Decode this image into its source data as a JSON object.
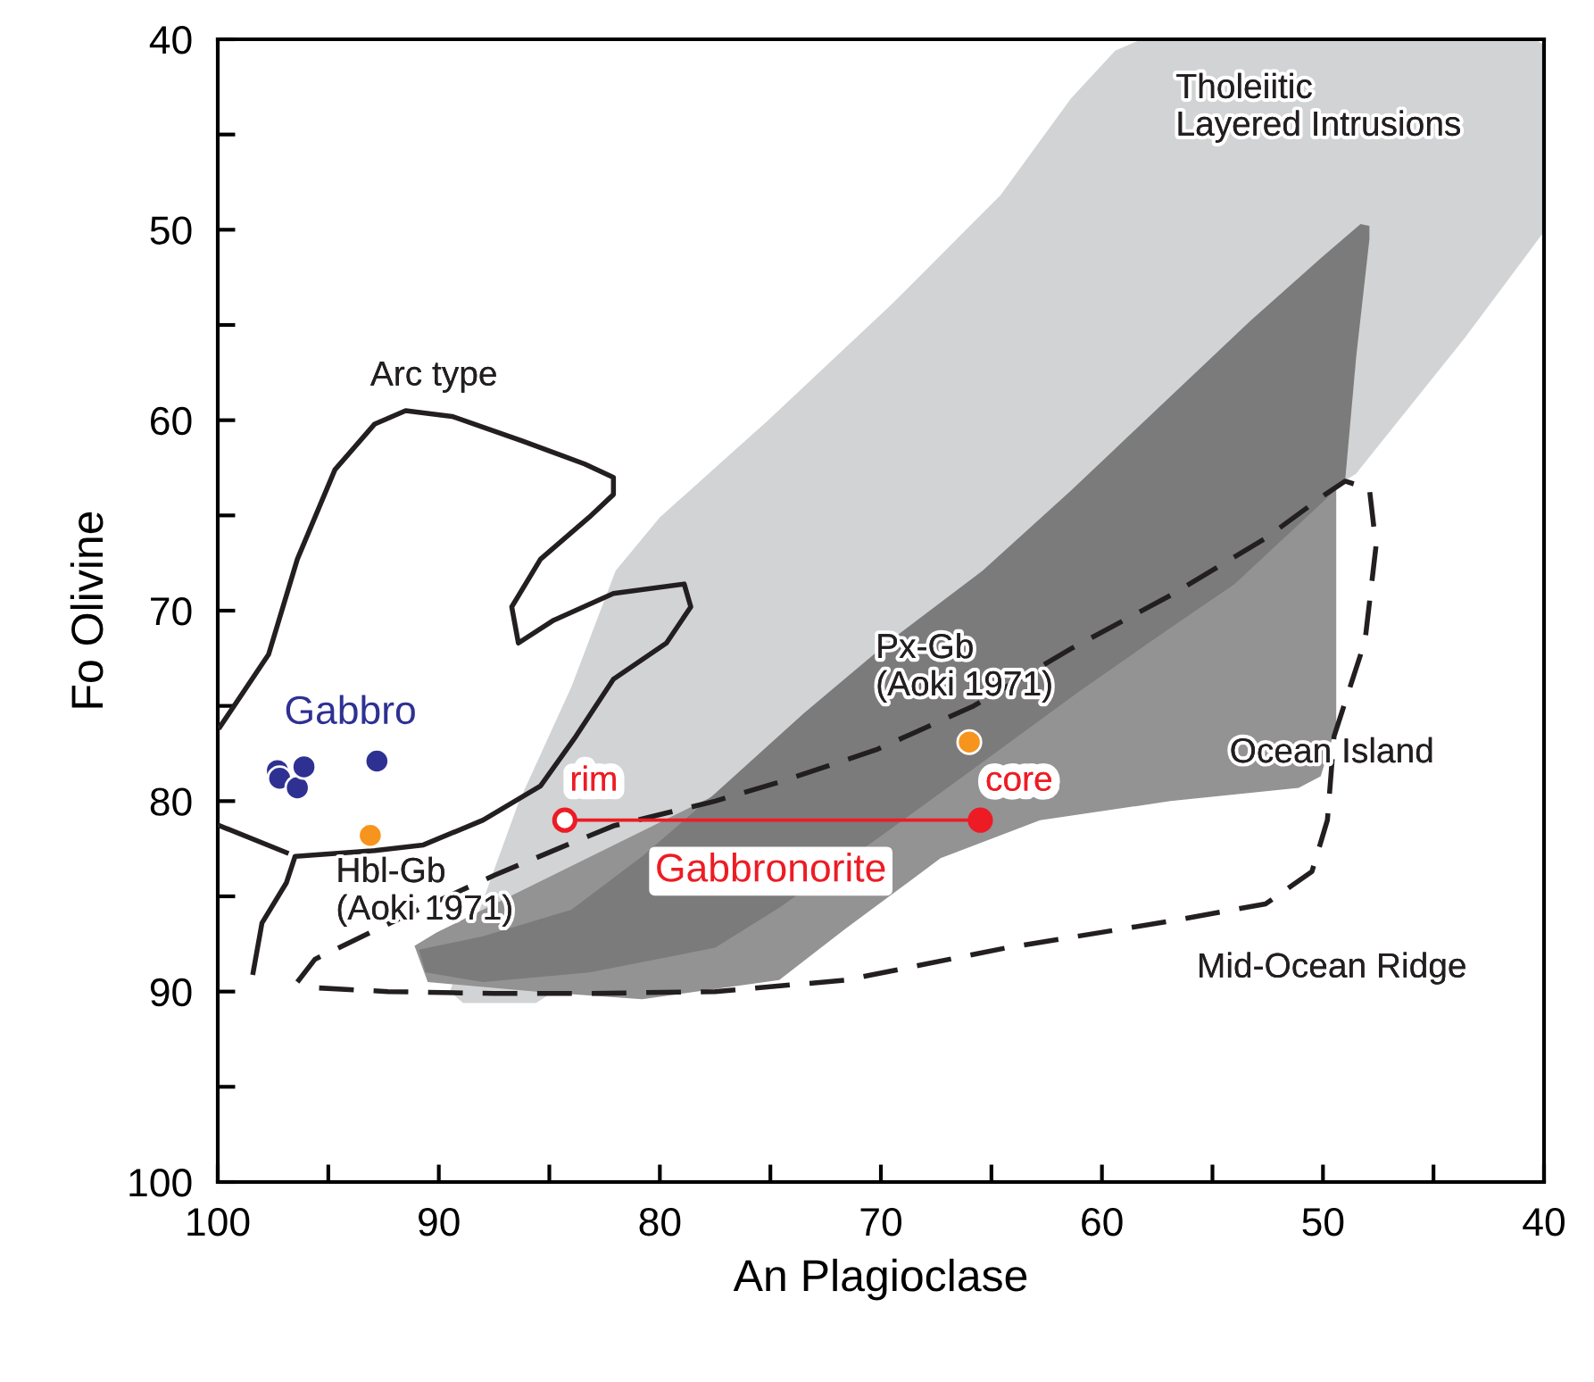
{
  "chart_data": {
    "type": "scatter",
    "xlabel": "An Plagioclase",
    "ylabel": "Fo Olivine",
    "xlim": [
      100,
      40
    ],
    "ylim": [
      100,
      40
    ],
    "xticks": [
      100,
      {
        "value": 95,
        "label": null
      },
      90,
      {
        "value": 85,
        "label": null
      },
      80,
      {
        "value": 75,
        "label": null
      },
      70,
      {
        "value": 65,
        "label": null
      },
      60,
      {
        "value": 55,
        "label": null
      },
      50,
      {
        "value": 45,
        "label": null
      },
      40
    ],
    "yticks": [
      40,
      {
        "value": 45,
        "label": null
      },
      50,
      {
        "value": 55,
        "label": null
      },
      60,
      {
        "value": 65,
        "label": null
      },
      70,
      {
        "value": 75,
        "label": null
      },
      80,
      {
        "value": 85,
        "label": null
      },
      90,
      {
        "value": 95,
        "label": null
      },
      100
    ],
    "series": [
      {
        "type": "area",
        "color": "#d1d3d4",
        "x": [
          89.5,
          86.4,
          84.0,
          82.0,
          80.0,
          75.1,
          69.5,
          64.6,
          61.4,
          59.4,
          58.2,
          40.4,
          40.0,
          40.0,
          43.6,
          48.5,
          85.6,
          88.9
        ],
        "values": [
          90.0,
          80.1,
          74.0,
          67.9,
          65.1,
          60.0,
          53.9,
          48.2,
          43.1,
          40.6,
          40,
          40,
          40.3,
          50.1,
          55.7,
          62.8,
          90.6,
          90.6
        ]
      },
      {
        "type": "area",
        "color": "#939393",
        "x": [
          91.1,
          90.1,
          49.4,
          49.4,
          50.1,
          51.1,
          56.9,
          62.8,
          67.3,
          71.6,
          74.6,
          80.8,
          85.6,
          90.5
        ],
        "values": [
          87.6,
          86.9,
          63.6,
          76.0,
          78.7,
          79.3,
          80.0,
          81.0,
          83.0,
          86.7,
          89.4,
          90.4,
          90.0,
          89.5
        ]
      },
      {
        "type": "area",
        "color": "#7b7b7b",
        "x": [
          47.9,
          48.3,
          50.1,
          53.3,
          57.4,
          61.4,
          65.4,
          69.5,
          73.5,
          77.5,
          80.8,
          84.0,
          88.0,
          90.9,
          90.6,
          88.0,
          83.2,
          77.5,
          74.6,
          70.2,
          65.8,
          61.1,
          56.9,
          54.0,
          49.0,
          48.5,
          47.9
        ],
        "values": [
          49.8,
          49.7,
          51.5,
          54.8,
          59.3,
          63.7,
          67.9,
          71.5,
          75.4,
          79.6,
          82.9,
          85.7,
          87.1,
          87.8,
          89.0,
          89.5,
          89.0,
          87.7,
          85.6,
          82.0,
          78.3,
          74.3,
          70.9,
          68.6,
          63.2,
          56.7,
          50.5
        ]
      },
      {
        "type": "line",
        "color": "#231f20",
        "line_style": "solid",
        "marker": "none",
        "x": [
          98.4,
          98.0,
          96.9,
          96.5,
          92.9,
          90.7,
          88.0,
          85.4,
          83.8,
          82.1,
          79.7,
          78.6,
          78.9,
          82.1,
          84.8,
          86.4,
          86.7,
          85.4,
          83.2,
          82.1,
          82.1,
          83.4,
          86.2,
          89.4,
          91.5,
          92.9,
          94.7,
          96.4,
          97.7,
          99.9,
          null,
          99.9,
          96.9
        ],
        "values": [
          89.0,
          86.4,
          84.3,
          82.9,
          82.6,
          82.3,
          81.0,
          79.2,
          76.6,
          73.6,
          71.7,
          69.8,
          68.6,
          69.1,
          70.5,
          71.7,
          69.8,
          67.3,
          65.1,
          63.9,
          63.0,
          62.3,
          61.1,
          59.8,
          59.5,
          60.2,
          62.6,
          67.3,
          72.3,
          76.1,
          null,
          81.3,
          82.7
        ]
      },
      {
        "type": "line",
        "color": "#231f20",
        "line_style": "dashed",
        "marker": "none",
        "x": [
          96.4,
          95.6,
          91.3,
          87.5,
          84.2,
          82.1,
          77.5,
          74.6,
          70.2,
          65.8,
          61.4,
          56.9,
          52.6,
          49.9,
          49.0,
          47.9,
          47.6,
          48.1,
          49.5,
          49.8,
          50.5,
          52.6,
          56.9,
          64.3,
          71.6,
          77.5,
          83.2,
          87.5,
          92.3,
          95.6
        ],
        "values": [
          89.5,
          88.3,
          85.9,
          83.9,
          82.3,
          81.3,
          80.0,
          79.0,
          77.3,
          75.0,
          72.0,
          69.2,
          66.2,
          63.9,
          63.2,
          63.6,
          66.6,
          71.6,
          76.6,
          81.0,
          83.7,
          85.4,
          86.3,
          87.7,
          89.4,
          90.0,
          90.1,
          90.1,
          90.0,
          89.8
        ]
      },
      {
        "name": "Gabbro",
        "color": "#2e3192",
        "marker": "circle",
        "x": [
          97.3,
          97.2,
          96.4,
          96.1,
          92.8
        ],
        "values": [
          78.4,
          78.8,
          79.3,
          78.2,
          77.9
        ]
      },
      {
        "color": "#f7941d",
        "marker": "circle",
        "x": [
          93.1,
          66.0
        ],
        "values": [
          81.8,
          76.9
        ]
      },
      {
        "type": "line",
        "name": "Gabbronorite",
        "color": "#ed1c24",
        "line_style": "solid",
        "marker": "circle",
        "colors": [
          "#ffffff",
          "#ed1c24"
        ],
        "x": [
          84.3,
          65.5
        ],
        "values": [
          81.0,
          81.0
        ],
        "value_labels": [
          "rim",
          "core"
        ]
      }
    ],
    "annotations": [
      "Arc type",
      "Tholeiitic\nLayered Intrusions",
      "Ocean Island",
      "Mid-Ocean Ridge",
      "Px-Gb\n(Aoki 1971)",
      "Hbl-Gb\n(Aoki 1971)"
    ]
  }
}
